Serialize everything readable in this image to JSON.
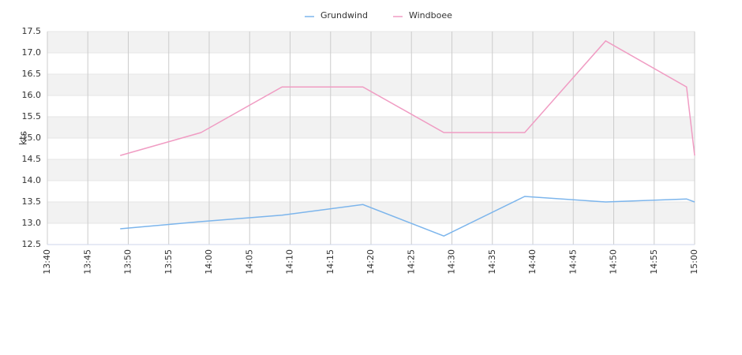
{
  "chart_data": {
    "type": "line",
    "y_label": "kts",
    "x": [
      "13:49",
      "13:59",
      "14:09",
      "14:19",
      "14:29",
      "14:39",
      "14:49",
      "14:59",
      "15:00"
    ],
    "series": [
      {
        "name": "Grundwind",
        "color": "#7cb5ec",
        "values": [
          12.87,
          13.04,
          13.19,
          13.44,
          12.7,
          13.63,
          13.5,
          13.57,
          13.5
        ]
      },
      {
        "name": "Windboee",
        "color": "#f09cc3",
        "values": [
          14.59,
          15.13,
          16.2,
          16.2,
          15.13,
          15.13,
          17.28,
          16.2,
          14.59
        ]
      }
    ],
    "xlim": [
      "13:40",
      "15:00"
    ],
    "xticks": [
      "13:40",
      "13:45",
      "13:50",
      "13:55",
      "14:00",
      "14:05",
      "14:10",
      "14:15",
      "14:20",
      "14:25",
      "14:30",
      "14:35",
      "14:40",
      "14:45",
      "14:50",
      "14:55",
      "15:00"
    ],
    "ylim": [
      12.5,
      17.5
    ],
    "yticks": [
      12.5,
      {
        "value": 13,
        "label": "13.0"
      },
      13.5,
      {
        "value": 14,
        "label": "14.0"
      },
      14.5,
      {
        "value": 15,
        "label": "15.0"
      },
      15.5,
      {
        "value": 16,
        "label": "16.0"
      },
      16.5,
      {
        "value": 17,
        "label": "17.0"
      },
      17.5
    ],
    "grid": true
  }
}
